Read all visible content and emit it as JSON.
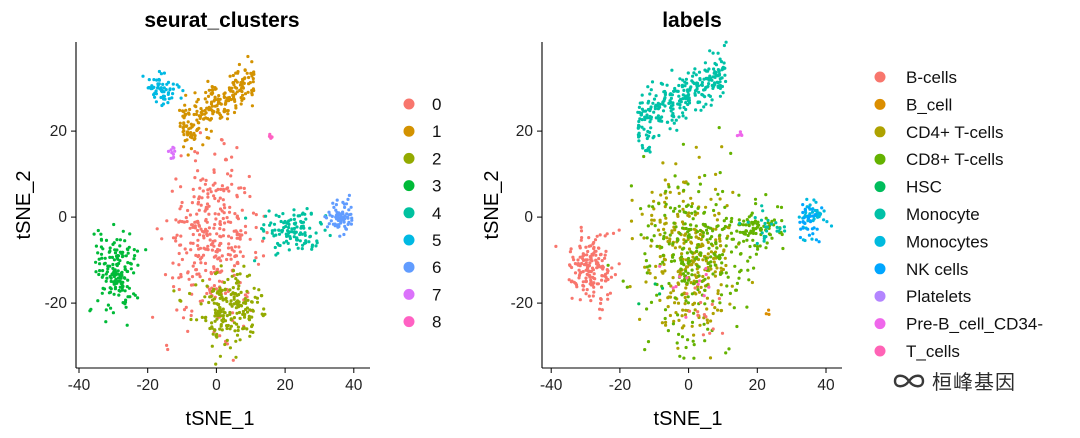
{
  "watermark": {
    "text": "桓峰基因",
    "icon": "wechat-channel-icon"
  },
  "chart_data": [
    {
      "type": "scatter",
      "id": "seurat",
      "title": "seurat_clusters",
      "xlabel": "tSNE_1",
      "ylabel": "tSNE_2",
      "xlim": [
        -42,
        45
      ],
      "ylim": [
        -35,
        40
      ],
      "xticks": [
        -40,
        -20,
        0,
        20,
        40
      ],
      "yticks": [
        -20,
        0,
        20
      ],
      "legend_position": "right",
      "legend": [
        {
          "key": "0",
          "color": "#F8766D"
        },
        {
          "key": "1",
          "color": "#D39200"
        },
        {
          "key": "2",
          "color": "#93AA00"
        },
        {
          "key": "3",
          "color": "#00BA38"
        },
        {
          "key": "4",
          "color": "#00C19F"
        },
        {
          "key": "5",
          "color": "#00B9E3"
        },
        {
          "key": "6",
          "color": "#619CFF"
        },
        {
          "key": "7",
          "color": "#DB72FB"
        },
        {
          "key": "8",
          "color": "#FF61C3"
        }
      ],
      "clusters": [
        {
          "group": "0",
          "cx": -1,
          "cy": -5,
          "sx": 9,
          "sy": 12,
          "n": 340,
          "shape": "gauss"
        },
        {
          "group": "1",
          "cx": 0,
          "cy": 26,
          "sx": 11,
          "sy": 4.5,
          "n": 230,
          "shape": "band",
          "slope": 0.55
        },
        {
          "group": "2",
          "cx": 4,
          "cy": -21,
          "sx": 6.5,
          "sy": 6,
          "n": 200,
          "shape": "gauss"
        },
        {
          "group": "3",
          "cx": -29,
          "cy": -12,
          "sx": 4.2,
          "sy": 5.5,
          "n": 170,
          "shape": "gauss"
        },
        {
          "group": "4",
          "cx": 22,
          "cy": -3,
          "sx": 6,
          "sy": 3.5,
          "n": 120,
          "shape": "gauss"
        },
        {
          "group": "5",
          "cx": -16,
          "cy": 30,
          "sx": 3.2,
          "sy": 2.5,
          "n": 60,
          "shape": "gauss"
        },
        {
          "group": "6",
          "cx": 36,
          "cy": 0,
          "sx": 2.6,
          "sy": 2.6,
          "n": 70,
          "shape": "gauss"
        },
        {
          "group": "7",
          "cx": -13,
          "cy": 15,
          "sx": 0.9,
          "sy": 1.2,
          "n": 10,
          "shape": "gauss"
        },
        {
          "group": "8",
          "cx": 15,
          "cy": 19,
          "sx": 1.1,
          "sy": 0.6,
          "n": 6,
          "shape": "gauss"
        }
      ]
    },
    {
      "type": "scatter",
      "id": "labels",
      "title": "labels",
      "xlabel": "tSNE_1",
      "ylabel": "tSNE_2",
      "xlim": [
        -42,
        45
      ],
      "ylim": [
        -35,
        40
      ],
      "xticks": [
        -40,
        -20,
        0,
        20,
        40
      ],
      "yticks": [
        -20,
        0,
        20
      ],
      "legend_position": "right",
      "legend": [
        {
          "key": "B-cells",
          "color": "#F8766D"
        },
        {
          "key": "B_cell",
          "color": "#DB8E00"
        },
        {
          "key": "CD4+ T-cells",
          "color": "#AEA200"
        },
        {
          "key": "CD8+ T-cells",
          "color": "#64B200"
        },
        {
          "key": "HSC",
          "color": "#00BD5C"
        },
        {
          "key": "Monocyte",
          "color": "#00C1A7"
        },
        {
          "key": "Monocytes",
          "color": "#00BADE"
        },
        {
          "key": "NK cells",
          "color": "#00A6FF"
        },
        {
          "key": "Platelets",
          "color": "#B385FF"
        },
        {
          "key": "Pre-B_cell_CD34-",
          "color": "#EF67EB"
        },
        {
          "key": "T_cells",
          "color": "#FF63B6"
        }
      ],
      "clusters": [
        {
          "group": "CD4+ T-cells",
          "cx": 0,
          "cy": -8,
          "sx": 9,
          "sy": 13,
          "n": 300,
          "shape": "gauss"
        },
        {
          "group": "CD8+ T-cells",
          "cx": 2,
          "cy": -10,
          "sx": 10,
          "sy": 13,
          "n": 260,
          "shape": "gauss"
        },
        {
          "group": "CD8+ T-cells",
          "cx": 20,
          "cy": -3,
          "sx": 6,
          "sy": 3.5,
          "n": 90,
          "shape": "gauss"
        },
        {
          "group": "B-cells",
          "cx": -29,
          "cy": -12,
          "sx": 4.2,
          "sy": 5.5,
          "n": 170,
          "shape": "gauss"
        },
        {
          "group": "B-cells",
          "cx": 4,
          "cy": -22,
          "sx": 6,
          "sy": 5,
          "n": 14,
          "shape": "gauss"
        },
        {
          "group": "Monocyte",
          "cx": -2,
          "cy": 28,
          "sx": 13,
          "sy": 4.5,
          "n": 280,
          "shape": "band",
          "slope": 0.45
        },
        {
          "group": "Monocyte",
          "cx": -12,
          "cy": 16,
          "sx": 1,
          "sy": 1.5,
          "n": 10,
          "shape": "gauss"
        },
        {
          "group": "Monocyte",
          "cx": 22,
          "cy": -3,
          "sx": 4,
          "sy": 2.5,
          "n": 25,
          "shape": "gauss"
        },
        {
          "group": "Monocytes",
          "cx": 36,
          "cy": 0,
          "sx": 2.6,
          "sy": 2.6,
          "n": 45,
          "shape": "gauss"
        },
        {
          "group": "NK cells",
          "cx": 35,
          "cy": -1,
          "sx": 2.6,
          "sy": 2.6,
          "n": 30,
          "shape": "gauss"
        },
        {
          "group": "B_cell",
          "cx": 23,
          "cy": -22,
          "sx": 0.6,
          "sy": 0.6,
          "n": 3,
          "shape": "gauss"
        },
        {
          "group": "Pre-B_cell_CD34-",
          "cx": 15,
          "cy": 19,
          "sx": 1.1,
          "sy": 0.6,
          "n": 5,
          "shape": "gauss"
        },
        {
          "group": "HSC",
          "cx": -10,
          "cy": -18,
          "sx": 3,
          "sy": 3,
          "n": 4,
          "shape": "gauss"
        },
        {
          "group": "T_cells",
          "cx": 2,
          "cy": -15,
          "sx": 6,
          "sy": 8,
          "n": 12,
          "shape": "gauss"
        }
      ]
    }
  ]
}
